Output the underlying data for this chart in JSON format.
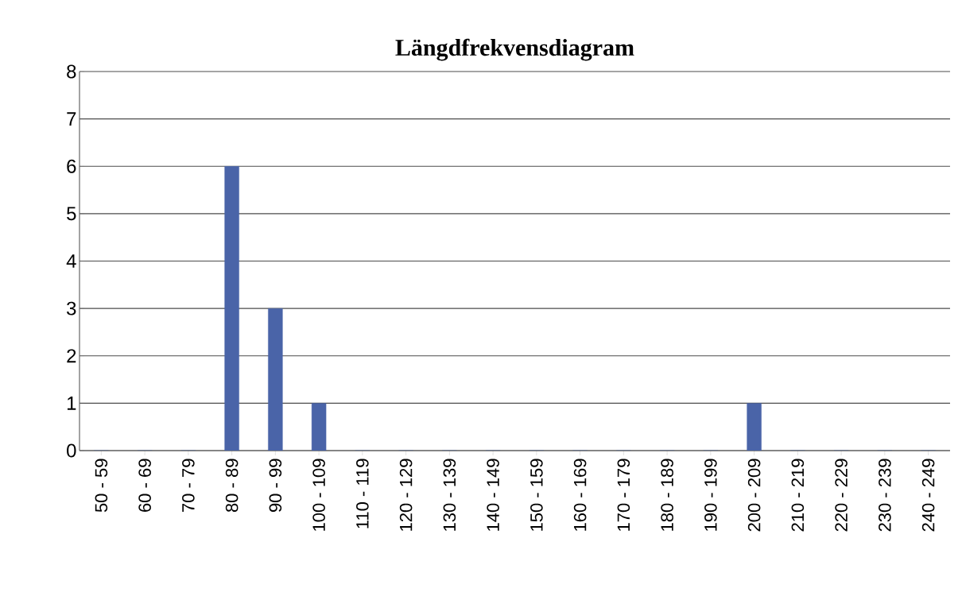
{
  "chart_data": {
    "type": "bar",
    "title": "Längdfrekvensdiagram",
    "categories": [
      "50 - 59",
      "60 - 69",
      "70 - 79",
      "80 - 89",
      "90 - 99",
      "100 - 109",
      "110 - 119",
      "120 - 129",
      "130 - 139",
      "140 - 149",
      "150 - 159",
      "160 - 169",
      "170 - 179",
      "180 - 189",
      "190 - 199",
      "200 - 209",
      "210 - 219",
      "220 - 229",
      "230 - 239",
      "240 - 249"
    ],
    "values": [
      0,
      0,
      0,
      6,
      3,
      1,
      0,
      0,
      0,
      0,
      0,
      0,
      0,
      0,
      0,
      1,
      0,
      0,
      0,
      0
    ],
    "color": "#4a64a8",
    "ylim": [
      0,
      8
    ],
    "yticks": [
      0,
      1,
      2,
      3,
      4,
      5,
      6,
      7,
      8
    ],
    "grid": "y"
  }
}
